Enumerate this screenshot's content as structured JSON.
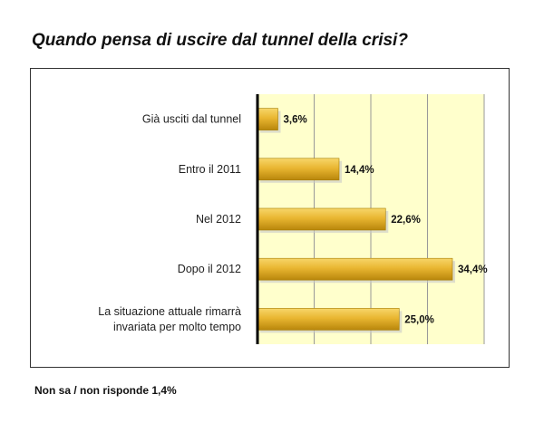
{
  "colors": {
    "plot_background": "#ffffcc",
    "bar": "#e0b030",
    "grid": "#999999"
  },
  "chart_data": {
    "type": "bar",
    "orientation": "horizontal",
    "title": "Quando pensa di uscire dal tunnel della crisi?",
    "categories": [
      [
        "Già usciti dal tunnel"
      ],
      [
        "Entro il 2011"
      ],
      [
        "Nel 2012"
      ],
      [
        "Dopo il 2012"
      ],
      [
        "La situazione attuale rimarrà",
        "invariata per molto tempo"
      ]
    ],
    "values": [
      3.6,
      14.4,
      22.6,
      34.4,
      25.0
    ],
    "value_labels": [
      "3,6%",
      "14,4%",
      "22,6%",
      "34,4%",
      "25,0%"
    ],
    "xlim": [
      0,
      40
    ],
    "grid": true,
    "legend": "none"
  },
  "footnote": "Non sa / non risponde 1,4%"
}
